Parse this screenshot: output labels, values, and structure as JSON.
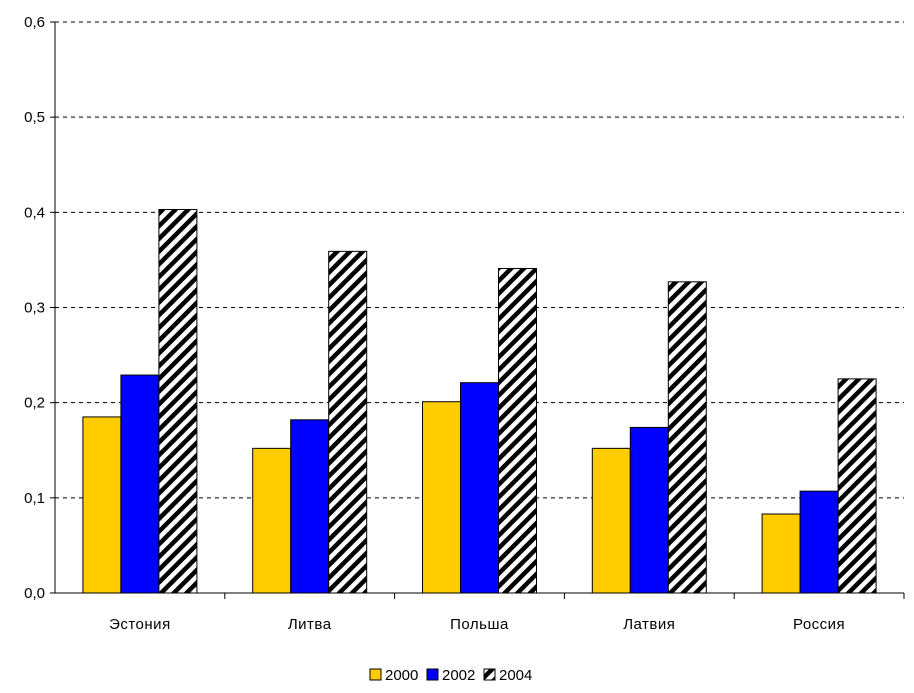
{
  "chart_data": {
    "type": "bar",
    "categories": [
      "Эстония",
      "Литва",
      "Польша",
      "Латвия",
      "Россия"
    ],
    "series": [
      {
        "name": "2000",
        "values": [
          0.185,
          0.152,
          0.201,
          0.152,
          0.083
        ],
        "color": "#FFCC00",
        "pattern": "solid"
      },
      {
        "name": "2002",
        "values": [
          0.229,
          0.182,
          0.221,
          0.174,
          0.107
        ],
        "color": "#0000FF",
        "pattern": "solid"
      },
      {
        "name": "2004",
        "values": [
          0.403,
          0.359,
          0.341,
          0.327,
          0.225
        ],
        "color": "#000000",
        "pattern": "diagonal-stripes"
      }
    ],
    "ylim": [
      0,
      0.6
    ],
    "yticks": [
      "0,0",
      "0,1",
      "0,2",
      "0,3",
      "0,4",
      "0,5",
      "0,6"
    ],
    "grid": true,
    "legend_position": "bottom"
  }
}
